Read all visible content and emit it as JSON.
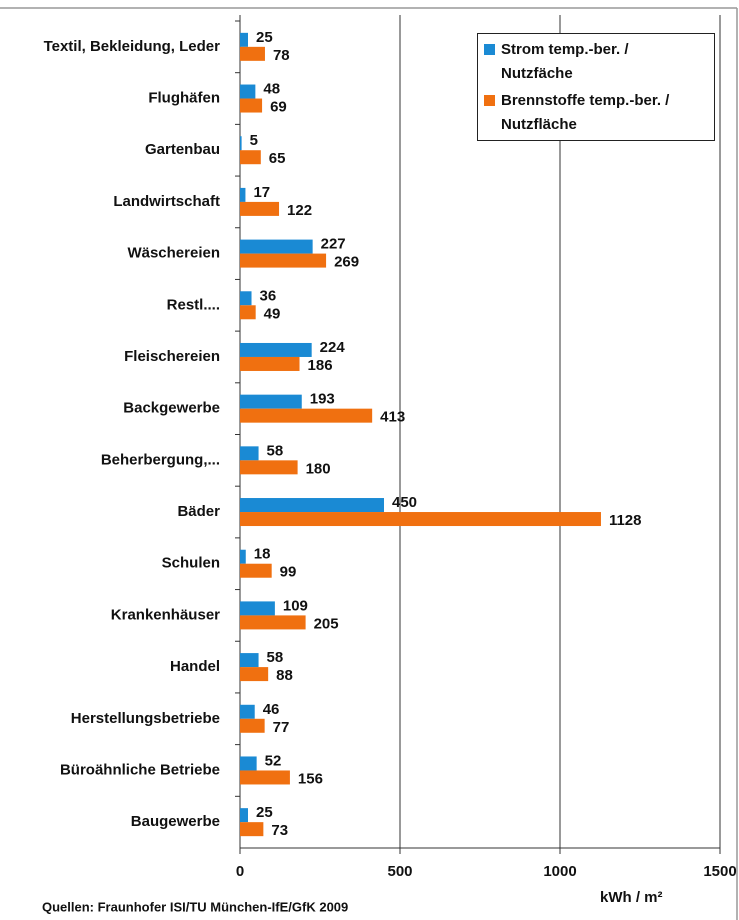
{
  "chart_data": {
    "type": "barh",
    "categories": [
      "Textil, Bekleidung, Leder",
      "Flughäfen",
      "Gartenbau",
      "Landwirtschaft",
      "Wäschereien",
      "Restl....",
      "Fleischereien",
      "Backgewerbe",
      "Beherbergung,...",
      "Bäder",
      "Schulen",
      "Krankenhäuser",
      "Handel",
      "Herstellungsbetriebe",
      "Büroähnliche Betriebe",
      "Baugewerbe"
    ],
    "series": [
      {
        "name": "Strom temp.-ber. / Nutzfäche",
        "color": "#1a8ad4",
        "values": [
          25,
          48,
          5,
          17,
          227,
          36,
          224,
          193,
          58,
          450,
          18,
          109,
          58,
          46,
          52,
          25
        ]
      },
      {
        "name": "Brennstoffe temp.-ber. / Nutzfläche",
        "color": "#f07010",
        "values": [
          78,
          69,
          65,
          122,
          269,
          49,
          186,
          413,
          180,
          1128,
          99,
          205,
          88,
          77,
          156,
          73
        ]
      }
    ],
    "xlim": [
      0,
      1500
    ],
    "xticks": [
      0,
      500,
      1000,
      1500
    ],
    "grid": true,
    "x_label": "kWh / m²",
    "source": "Quellen: Fraunhofer ISI/TU München-IfE/GfK 2009",
    "legend": "upper right"
  }
}
